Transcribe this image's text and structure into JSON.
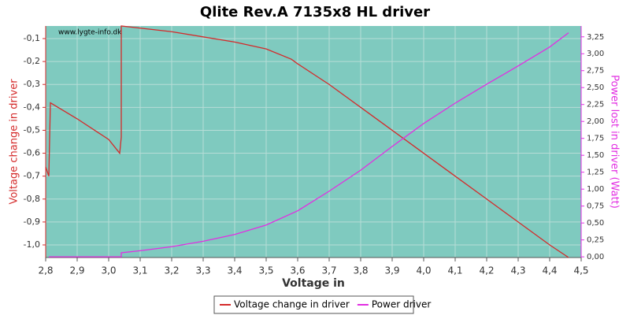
{
  "chart_data": {
    "type": "line",
    "title": "Qlite Rev.A 7135x8 HL driver",
    "watermark": "www.lygte-info.dk",
    "x_label": "Voltage in",
    "y_label": "Voltage change in driver",
    "y2_label": "Power lost in driver (Watt)",
    "xlim": [
      2.8,
      4.5
    ],
    "xticks": [
      {
        "value": 2.8,
        "label": "2,8"
      },
      {
        "value": 2.9,
        "label": "2,9"
      },
      {
        "value": 3.0,
        "label": "3,0"
      },
      {
        "value": 3.1,
        "label": "3,1"
      },
      {
        "value": 3.2,
        "label": "3,2"
      },
      {
        "value": 3.3,
        "label": "3,3"
      },
      {
        "value": 3.4,
        "label": "3,4"
      },
      {
        "value": 3.5,
        "label": "3,5"
      },
      {
        "value": 3.6,
        "label": "3,6"
      },
      {
        "value": 3.7,
        "label": "3,7"
      },
      {
        "value": 3.8,
        "label": "3,8"
      },
      {
        "value": 3.9,
        "label": "3,9"
      },
      {
        "value": 4.0,
        "label": "4,0"
      },
      {
        "value": 4.1,
        "label": "4,1"
      },
      {
        "value": 4.2,
        "label": "4,2"
      },
      {
        "value": 4.3,
        "label": "4,3"
      },
      {
        "value": 4.4,
        "label": "4,4"
      },
      {
        "value": 4.5,
        "label": "4,5"
      }
    ],
    "ylim": [
      -1.055,
      -0.045
    ],
    "yticks": [
      {
        "value": -1.0,
        "label": "-1,0"
      },
      {
        "value": -0.9,
        "label": "-0,9"
      },
      {
        "value": -0.8,
        "label": "-0,8"
      },
      {
        "value": -0.7,
        "label": "-0,7"
      },
      {
        "value": -0.6,
        "label": "-0,6"
      },
      {
        "value": -0.5,
        "label": "-0,5"
      },
      {
        "value": -0.4,
        "label": "-0,4"
      },
      {
        "value": -0.3,
        "label": "-0,3"
      },
      {
        "value": -0.2,
        "label": "-0,2"
      },
      {
        "value": -0.1,
        "label": "-0,1"
      }
    ],
    "y2lim": [
      -0.01,
      3.41
    ],
    "y2ticks": [
      {
        "value": 0,
        "label": "0,00"
      },
      {
        "value": 0.25,
        "label": "0,25"
      },
      {
        "value": 0.5,
        "label": "0,50"
      },
      {
        "value": 0.75,
        "label": "0,75"
      },
      {
        "value": 1.0,
        "label": "1,00"
      },
      {
        "value": 1.25,
        "label": "1,25"
      },
      {
        "value": 1.5,
        "label": "1,50"
      },
      {
        "value": 1.75,
        "label": "1,75"
      },
      {
        "value": 2.0,
        "label": "2,00"
      },
      {
        "value": 2.25,
        "label": "2,25"
      },
      {
        "value": 2.5,
        "label": "2,50"
      },
      {
        "value": 2.75,
        "label": "2,75"
      },
      {
        "value": 3.0,
        "label": "3,00"
      },
      {
        "value": 3.25,
        "label": "3,25"
      }
    ],
    "grid": true,
    "series": [
      {
        "name": "Voltage change in driver",
        "color": "#d42a2a",
        "x": [
          2.8,
          2.81,
          2.815,
          2.9,
          3.0,
          3.035,
          3.04,
          3.04,
          3.2,
          3.4,
          3.5,
          3.58,
          3.6,
          3.7,
          3.8,
          3.9,
          4.0,
          4.1,
          4.2,
          4.3,
          4.4,
          4.46
        ],
        "values": [
          -0.66,
          -0.7,
          -0.38,
          -0.45,
          -0.54,
          -0.6,
          -0.53,
          -0.045,
          -0.07,
          -0.115,
          -0.145,
          -0.19,
          -0.21,
          -0.3,
          -0.4,
          -0.5,
          -0.6,
          -0.7,
          -0.8,
          -0.9,
          -1.0,
          -1.055
        ]
      },
      {
        "name": "Power driver",
        "color": "#e22ee2",
        "axis": "y2",
        "x": [
          2.81,
          3.04,
          3.04,
          3.1,
          3.2,
          3.3,
          3.4,
          3.5,
          3.6,
          3.7,
          3.8,
          3.9,
          4.0,
          4.1,
          4.2,
          4.3,
          4.4,
          4.46
        ],
        "values": [
          0.0,
          0.0,
          0.06,
          0.09,
          0.15,
          0.23,
          0.33,
          0.47,
          0.68,
          0.97,
          1.28,
          1.63,
          1.97,
          2.27,
          2.55,
          2.82,
          3.1,
          3.31
        ]
      }
    ]
  }
}
